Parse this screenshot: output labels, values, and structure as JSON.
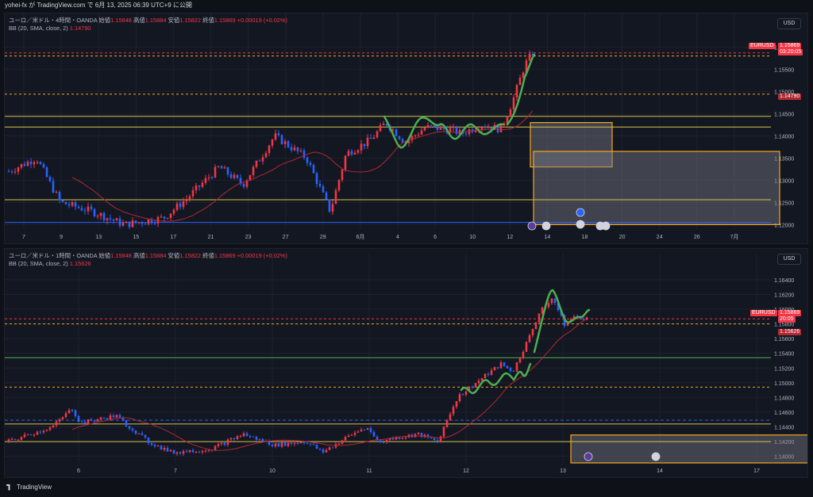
{
  "header": {
    "attribution": "yohei-fx が TradingView.com で 6月 13, 2025 06:39 UTC+9 に公開"
  },
  "footer": {
    "brand": "TradingView"
  },
  "colors": {
    "up": "#f23645",
    "down": "#2962ff",
    "bb_mid": "#b22833",
    "wave": "#4caf50",
    "zone": "#f5a623",
    "hline": "#d8c24b",
    "grid": "#1e222d",
    "bg": "#131722"
  },
  "panels": [
    {
      "legend": {
        "symbol": "ユーロ／米ドル・4時間・OANDA",
        "o_label": "始値",
        "o": "1.15848",
        "h_label": "高値",
        "h": "1.15884",
        "l_label": "安値",
        "l": "1.15822",
        "c_label": "終値",
        "c": "1.15869",
        "chg": "+0.00019 (+0.02%)"
      },
      "indicator": {
        "label": "BB (20, SMA, close, 2)",
        "value": "1.14790"
      },
      "currency_button": "USD",
      "price_ticks": [
        "1.16000",
        "1.15500",
        "1.15000",
        "1.14500",
        "1.14000",
        "1.13500",
        "1.13000",
        "1.12500",
        "1.12000"
      ],
      "time_ticks": [
        "7",
        "9",
        "13",
        "15",
        "17",
        "21",
        "23",
        "27",
        "29",
        "6月",
        "4",
        "6",
        "10",
        "12",
        "14",
        "18",
        "20",
        "24",
        "26",
        "7月"
      ],
      "symbol_tag": "EURUSD",
      "price_tag": "1.15869",
      "countdown_tag": "03:20:05",
      "bb_tag": "1.14790",
      "chart_data": {
        "type": "candlestick",
        "ylim": [
          1.119,
          1.164
        ],
        "current_price": 1.15869,
        "bb_basis_last": 1.1479,
        "horizontal_lines": [
          1.158,
          1.1494,
          1.1444,
          1.142,
          1.1256,
          1.1205
        ],
        "zones": [
          [
            1.133,
            1.143
          ],
          [
            1.12,
            1.1365
          ]
        ]
      }
    },
    {
      "legend": {
        "symbol": "ユーロ／米ドル・1時間・OANDA",
        "o_label": "始値",
        "o": "1.15848",
        "h_label": "高値",
        "h": "1.15884",
        "l_label": "安値",
        "l": "1.15822",
        "c_label": "終値",
        "c": "1.15869",
        "chg": "+0.00019 (+0.02%)"
      },
      "indicator": {
        "label": "BB (20, SMA, close, 2)",
        "value": "1.15626"
      },
      "currency_button": "USD",
      "price_ticks": [
        "1.16400",
        "1.16200",
        "1.16000",
        "1.15800",
        "1.15600",
        "1.15400",
        "1.15200",
        "1.15000",
        "1.14800",
        "1.14600",
        "1.14400",
        "1.14200",
        "1.14000"
      ],
      "time_ticks": [
        "6",
        "7",
        "10",
        "11",
        "12",
        "13",
        "14",
        "17"
      ],
      "symbol_tag": "EURUSD",
      "price_tag": "1.15869",
      "countdown_tag": "20:05",
      "bb_tag": "1.15626",
      "chart_data": {
        "type": "candlestick",
        "ylim": [
          1.1391,
          1.1655
        ],
        "current_price": 1.15869,
        "bb_basis_last": 1.15626,
        "horizontal_lines": [
          1.158,
          1.1534,
          1.1494,
          1.1449,
          1.1444,
          1.142
        ],
        "zones": [
          [
            1.1391,
            1.1429
          ]
        ]
      }
    }
  ]
}
